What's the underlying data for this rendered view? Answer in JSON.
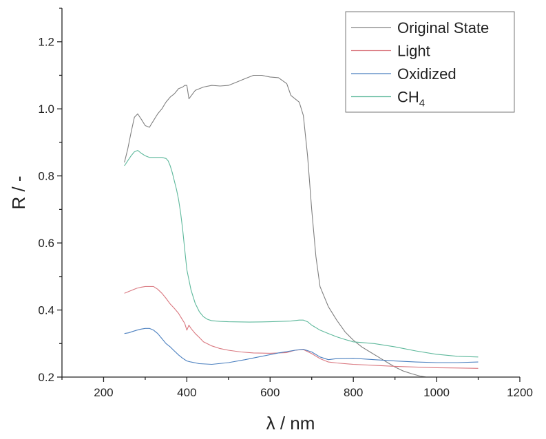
{
  "chart_data": {
    "type": "line",
    "title": "",
    "xlabel": "λ / nm",
    "ylabel": "R / -",
    "xlim": [
      100,
      1200
    ],
    "ylim": [
      0.2,
      1.3
    ],
    "xticks": [
      200,
      400,
      600,
      800,
      1000,
      1200
    ],
    "xtick_labels": [
      "200",
      "400",
      "600",
      "800",
      "1000",
      "1200"
    ],
    "yticks": [
      0.2,
      0.4,
      0.6,
      0.8,
      1.0,
      1.2
    ],
    "ytick_labels": [
      "0.2",
      "0.4",
      "0.6",
      "0.8",
      "1.0",
      "1.2"
    ],
    "grid": false,
    "legend_position": "top-right",
    "series": [
      {
        "name": "Original State",
        "color": "#7f7f7f",
        "x": [
          250,
          258,
          266,
          274,
          282,
          290,
          300,
          310,
          320,
          330,
          340,
          350,
          360,
          370,
          380,
          390,
          395,
          400,
          405,
          420,
          440,
          460,
          480,
          500,
          520,
          540,
          560,
          580,
          600,
          620,
          640,
          650,
          660,
          670,
          680,
          690,
          700,
          710,
          720,
          740,
          760,
          780,
          800,
          820,
          840,
          860,
          880,
          900,
          920,
          940,
          960,
          975
        ],
        "y": [
          0.84,
          0.88,
          0.93,
          0.975,
          0.985,
          0.97,
          0.95,
          0.945,
          0.965,
          0.985,
          1.0,
          1.02,
          1.035,
          1.045,
          1.06,
          1.065,
          1.07,
          1.07,
          1.03,
          1.055,
          1.065,
          1.07,
          1.068,
          1.07,
          1.08,
          1.09,
          1.1,
          1.1,
          1.095,
          1.093,
          1.075,
          1.04,
          1.03,
          1.02,
          0.98,
          0.86,
          0.7,
          0.56,
          0.47,
          0.41,
          0.37,
          0.335,
          0.31,
          0.29,
          0.275,
          0.26,
          0.245,
          0.23,
          0.218,
          0.21,
          0.203,
          0.2
        ]
      },
      {
        "name": "Light",
        "color": "#d9767e",
        "x": [
          250,
          260,
          270,
          280,
          290,
          300,
          310,
          320,
          330,
          340,
          350,
          360,
          370,
          380,
          385,
          390,
          395,
          400,
          405,
          410,
          420,
          430,
          440,
          460,
          480,
          500,
          530,
          560,
          600,
          640,
          660,
          680,
          700,
          720,
          740,
          760,
          800,
          850,
          900,
          950,
          1000,
          1050,
          1100
        ],
        "y": [
          0.45,
          0.455,
          0.46,
          0.465,
          0.468,
          0.47,
          0.47,
          0.47,
          0.462,
          0.45,
          0.435,
          0.418,
          0.405,
          0.39,
          0.38,
          0.37,
          0.36,
          0.34,
          0.355,
          0.345,
          0.33,
          0.318,
          0.305,
          0.293,
          0.285,
          0.28,
          0.275,
          0.272,
          0.271,
          0.273,
          0.28,
          0.282,
          0.27,
          0.255,
          0.245,
          0.242,
          0.238,
          0.235,
          0.232,
          0.23,
          0.228,
          0.227,
          0.226
        ]
      },
      {
        "name": "Oxidized",
        "color": "#4a7fbf",
        "x": [
          250,
          260,
          270,
          280,
          290,
          300,
          310,
          320,
          330,
          340,
          350,
          360,
          370,
          380,
          390,
          400,
          410,
          430,
          460,
          500,
          540,
          580,
          620,
          660,
          680,
          700,
          720,
          740,
          760,
          800,
          850,
          900,
          950,
          1000,
          1050,
          1100
        ],
        "y": [
          0.33,
          0.332,
          0.336,
          0.34,
          0.343,
          0.345,
          0.345,
          0.34,
          0.33,
          0.315,
          0.3,
          0.29,
          0.278,
          0.266,
          0.256,
          0.248,
          0.245,
          0.24,
          0.238,
          0.243,
          0.252,
          0.262,
          0.272,
          0.28,
          0.283,
          0.275,
          0.26,
          0.252,
          0.255,
          0.256,
          0.252,
          0.248,
          0.245,
          0.243,
          0.243,
          0.245
        ]
      },
      {
        "name": "CH4",
        "color": "#5db89b",
        "x": [
          250,
          258,
          266,
          274,
          282,
          290,
          300,
          310,
          320,
          330,
          340,
          350,
          355,
          360,
          365,
          370,
          375,
          380,
          385,
          390,
          395,
          400,
          405,
          410,
          420,
          430,
          440,
          450,
          460,
          480,
          500,
          550,
          600,
          650,
          670,
          680,
          690,
          700,
          720,
          740,
          760,
          780,
          800,
          850,
          900,
          950,
          1000,
          1050,
          1100
        ],
        "y": [
          0.83,
          0.845,
          0.86,
          0.872,
          0.876,
          0.868,
          0.86,
          0.855,
          0.855,
          0.855,
          0.855,
          0.852,
          0.845,
          0.83,
          0.81,
          0.785,
          0.76,
          0.73,
          0.69,
          0.64,
          0.58,
          0.52,
          0.49,
          0.46,
          0.42,
          0.395,
          0.38,
          0.372,
          0.368,
          0.366,
          0.365,
          0.364,
          0.365,
          0.367,
          0.37,
          0.37,
          0.365,
          0.355,
          0.34,
          0.33,
          0.32,
          0.312,
          0.305,
          0.3,
          0.29,
          0.278,
          0.268,
          0.262,
          0.26
        ]
      }
    ],
    "legend": {
      "entries": [
        {
          "base": "Original State",
          "sub": ""
        },
        {
          "base": "Light",
          "sub": ""
        },
        {
          "base": "Oxidized",
          "sub": ""
        },
        {
          "base": "CH",
          "sub": "4"
        }
      ]
    }
  }
}
